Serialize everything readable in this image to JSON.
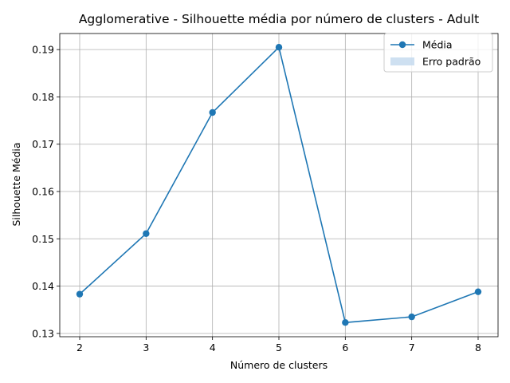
{
  "chart_data": {
    "type": "line",
    "title": "Agglomerative - Silhouette média por número de clusters - Adult",
    "xlabel": "Número de clusters",
    "ylabel": "Silhouette Média",
    "x": [
      2,
      3,
      4,
      5,
      6,
      7,
      8
    ],
    "x_ticks": [
      "2",
      "3",
      "4",
      "5",
      "6",
      "7",
      "8"
    ],
    "y_ticks": [
      "0.13",
      "0.14",
      "0.15",
      "0.16",
      "0.17",
      "0.18",
      "0.19"
    ],
    "xlim": [
      1.7,
      8.3
    ],
    "ylim": [
      0.1293,
      0.1934
    ],
    "grid": true,
    "legend_position": "top-right",
    "series": [
      {
        "name": "Média",
        "values": [
          0.1383,
          0.1511,
          0.1767,
          0.1905,
          0.1323,
          0.1335,
          0.1388
        ],
        "color": "#1f77b4",
        "marker": "circle"
      }
    ],
    "legend": [
      {
        "label": "Média",
        "kind": "line-marker",
        "color": "#1f77b4"
      },
      {
        "label": "Erro padrão",
        "kind": "patch",
        "color": "#c6dbef"
      }
    ]
  }
}
